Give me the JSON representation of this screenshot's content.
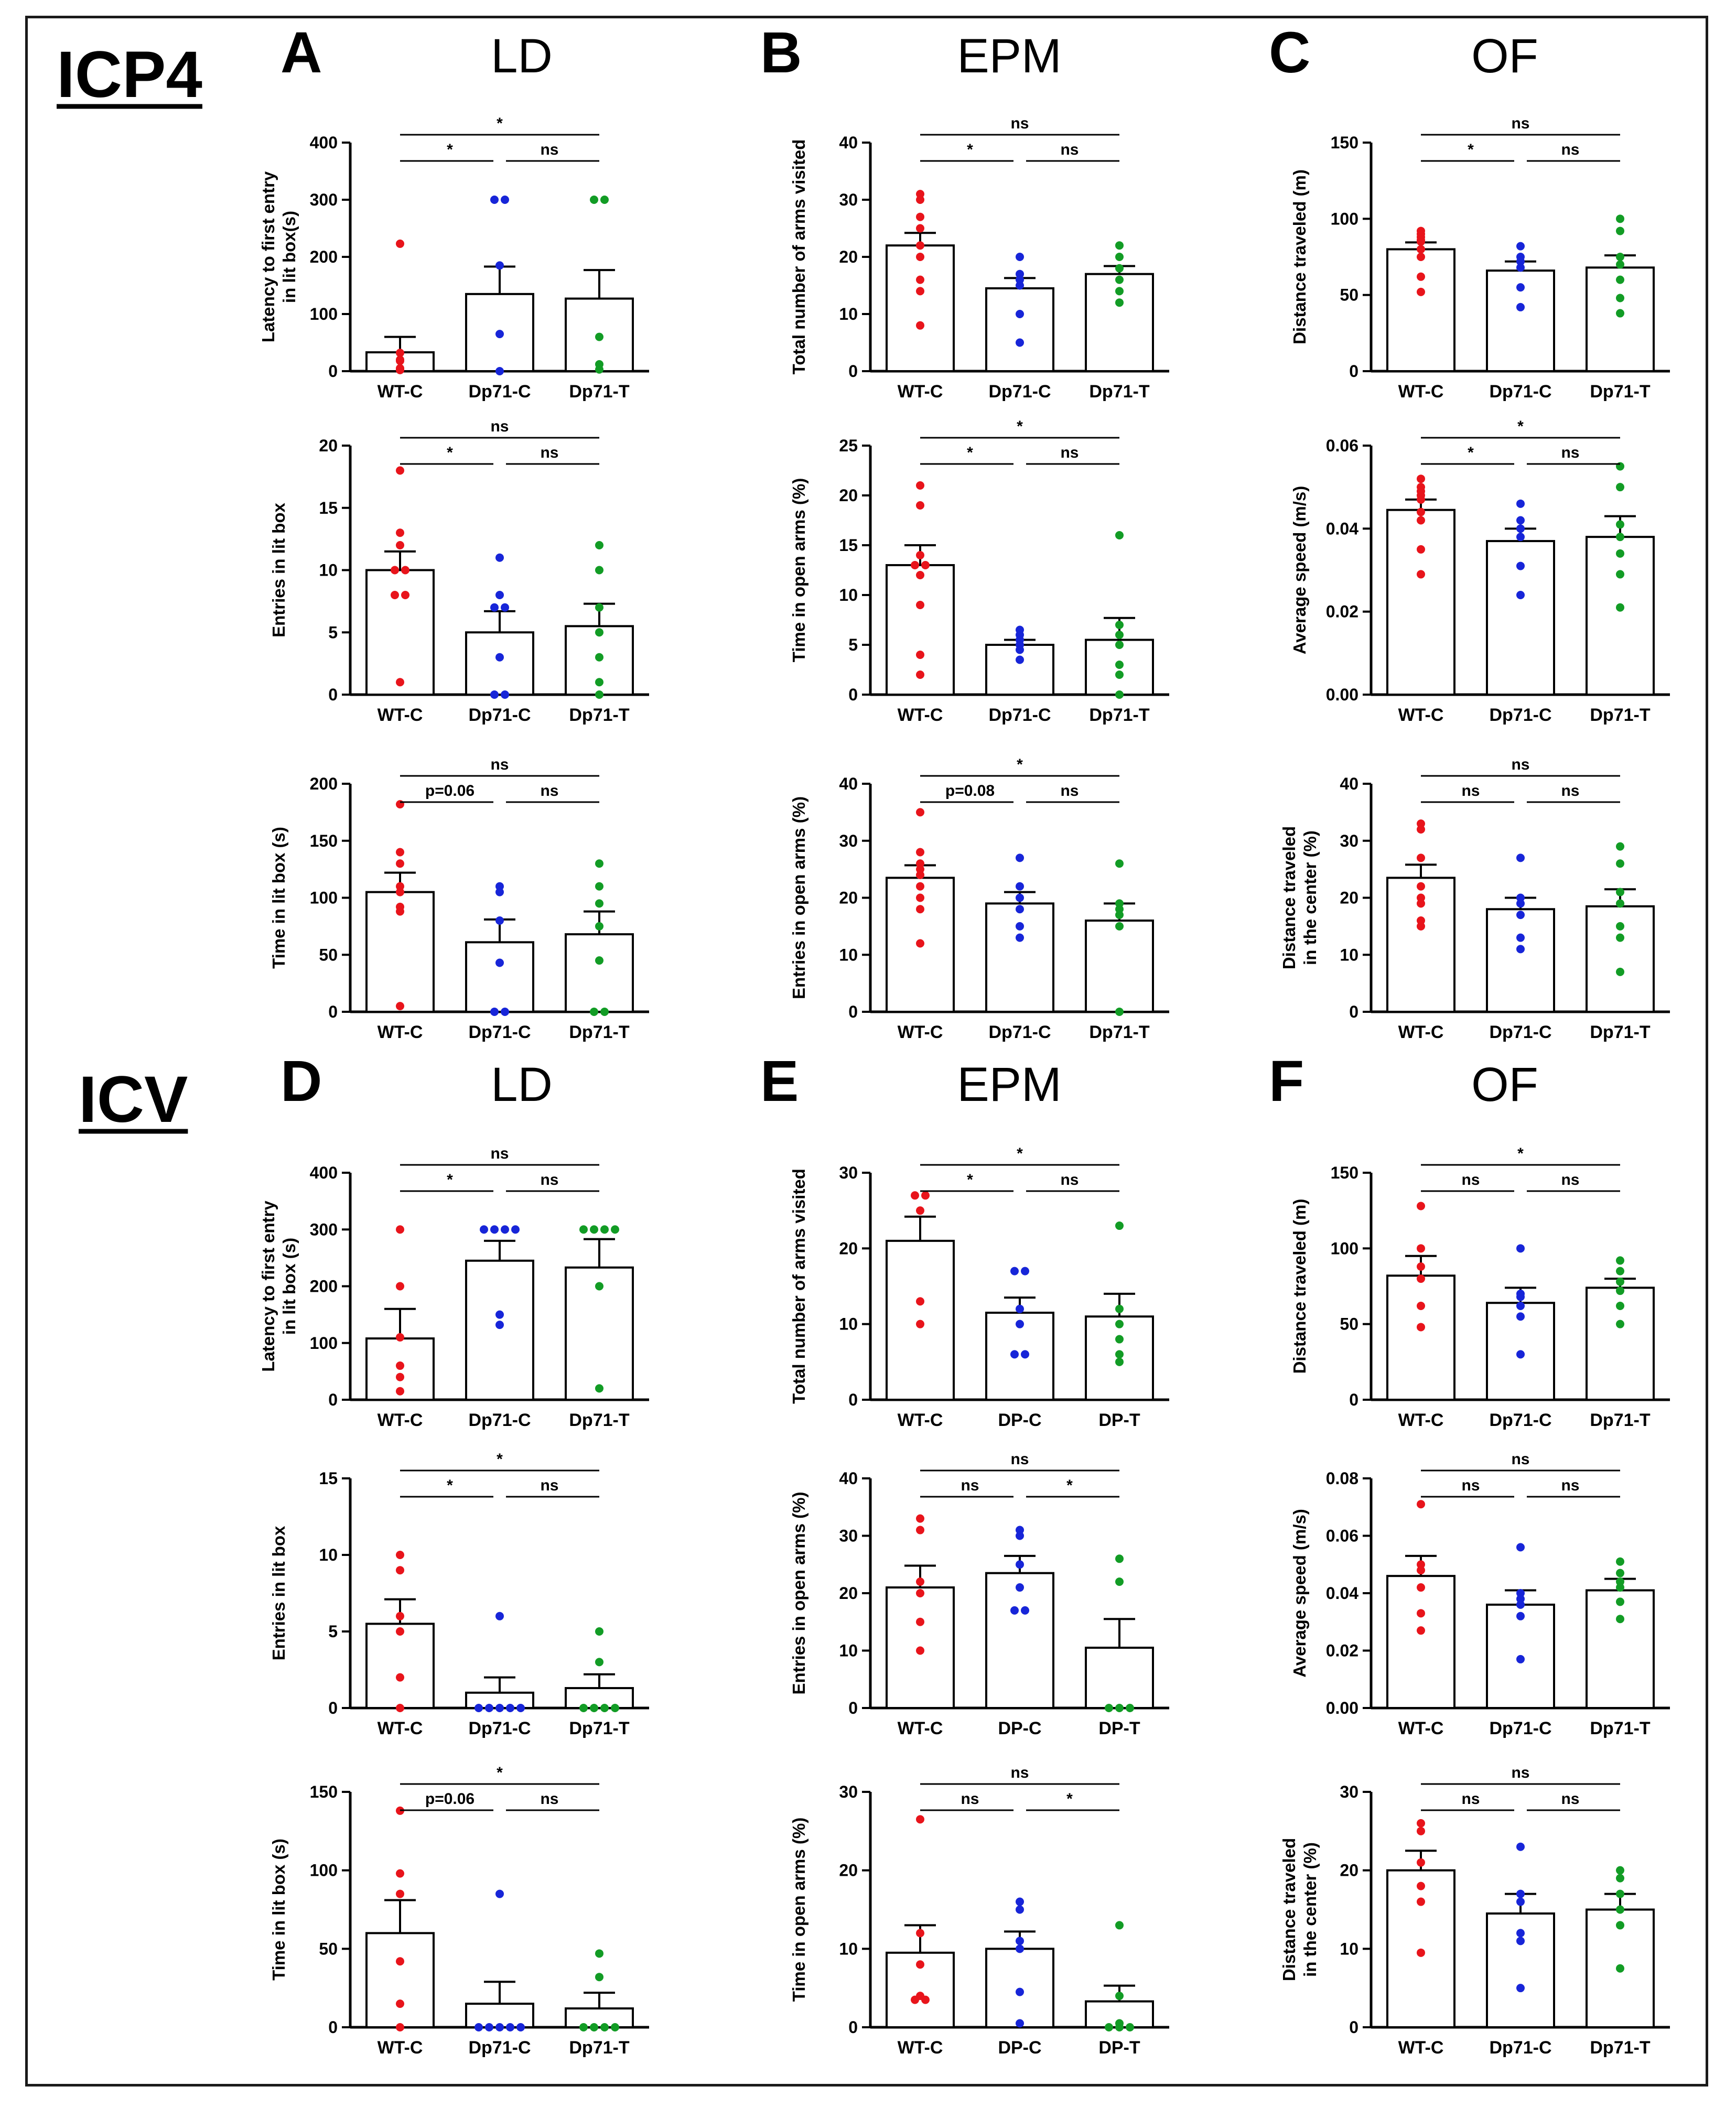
{
  "section_labels": [
    "ICP4",
    "ICV"
  ],
  "colors": {
    "red": "#e8141b",
    "blue": "#1725d8",
    "green": "#129c25",
    "axis": "#000000"
  },
  "chart_data": [
    {
      "panel": "A",
      "test": "LD",
      "group": "ICP4",
      "type": "bar",
      "title": "",
      "ylabel": "Latency to first entry\nin lit box(s)",
      "ylim": [
        0,
        400
      ],
      "yticks": [
        "0",
        "100",
        "200",
        "300",
        "400"
      ],
      "categories": [
        "WT-C",
        "Dp71-C",
        "Dp71-T"
      ],
      "means": [
        33,
        135,
        127
      ],
      "sems": [
        27,
        48,
        50
      ],
      "points": [
        [
          223,
          32,
          20,
          18,
          5,
          3,
          2
        ],
        [
          300,
          300,
          185,
          65,
          0
        ],
        [
          300,
          300,
          60,
          12,
          3
        ]
      ],
      "sig": {
        "top": "*",
        "left": "*",
        "right": "ns"
      }
    },
    {
      "panel": "",
      "test": "LD",
      "group": "ICP4",
      "type": "bar",
      "ylabel": "Entries in lit box",
      "ylim": [
        0,
        20
      ],
      "yticks": [
        "0",
        "5",
        "10",
        "15",
        "20"
      ],
      "categories": [
        "WT-C",
        "Dp71-C",
        "Dp71-T"
      ],
      "means": [
        10,
        5,
        5.5
      ],
      "sems": [
        1.5,
        1.7,
        1.8
      ],
      "points": [
        [
          18,
          13,
          12,
          10,
          10,
          8,
          8,
          1
        ],
        [
          11,
          8,
          7,
          7,
          3,
          0,
          0
        ],
        [
          12,
          10,
          7,
          5,
          3,
          1,
          0
        ]
      ],
      "sig": {
        "top": "ns",
        "left": "*",
        "right": "ns"
      }
    },
    {
      "panel": "",
      "test": "LD",
      "group": "ICP4",
      "type": "bar",
      "ylabel": "Time in lit box (s)",
      "ylim": [
        0,
        200
      ],
      "yticks": [
        "0",
        "50",
        "100",
        "150",
        "200"
      ],
      "categories": [
        "WT-C",
        "Dp71-C",
        "Dp71-T"
      ],
      "means": [
        105,
        61,
        68
      ],
      "sems": [
        17,
        20,
        20
      ],
      "points": [
        [
          182,
          140,
          130,
          110,
          105,
          92,
          88,
          5
        ],
        [
          110,
          105,
          80,
          43,
          0,
          0
        ],
        [
          130,
          110,
          95,
          75,
          45,
          0,
          0
        ]
      ],
      "sig": {
        "top": "ns",
        "left": "p=0.06",
        "right": "ns"
      }
    },
    {
      "panel": "B",
      "test": "EPM",
      "group": "ICP4",
      "type": "bar",
      "ylabel": "Total number of arms visited",
      "ylim": [
        0,
        40
      ],
      "yticks": [
        "0",
        "10",
        "20",
        "30",
        "40"
      ],
      "categories": [
        "WT-C",
        "Dp71-C",
        "Dp71-T"
      ],
      "means": [
        22,
        14.5,
        17
      ],
      "sems": [
        2.2,
        1.8,
        1.4
      ],
      "points": [
        [
          31,
          30,
          27,
          25,
          22,
          20,
          16,
          14,
          8
        ],
        [
          20,
          17,
          16,
          15,
          10,
          5
        ],
        [
          22,
          20,
          18,
          16,
          14,
          12
        ]
      ],
      "sig": {
        "top": "ns",
        "left": "*",
        "right": "ns"
      }
    },
    {
      "panel": "",
      "test": "EPM",
      "group": "ICP4",
      "type": "bar",
      "ylabel": "Time in open arms (%)",
      "ylim": [
        0,
        25
      ],
      "yticks": [
        "0",
        "5",
        "10",
        "15",
        "20",
        "25"
      ],
      "categories": [
        "WT-C",
        "Dp71-C",
        "Dp71-T"
      ],
      "means": [
        13,
        5,
        5.5
      ],
      "sems": [
        2,
        0.5,
        2.2
      ],
      "points": [
        [
          21,
          19,
          14,
          13,
          13,
          12,
          9,
          4,
          2
        ],
        [
          6.5,
          6,
          5.5,
          5,
          4.5,
          3.5
        ],
        [
          16,
          7,
          6,
          5,
          3,
          2,
          0
        ]
      ],
      "sig": {
        "top": "*",
        "left": "*",
        "right": "ns"
      }
    },
    {
      "panel": "",
      "test": "EPM",
      "group": "ICP4",
      "type": "bar",
      "ylabel": "Entries in open arms (%)",
      "ylim": [
        0,
        40
      ],
      "yticks": [
        "0",
        "10",
        "20",
        "30",
        "40"
      ],
      "categories": [
        "WT-C",
        "Dp71-C",
        "Dp71-T"
      ],
      "means": [
        23.5,
        19,
        16
      ],
      "sems": [
        2.2,
        2,
        3
      ],
      "points": [
        [
          35,
          28,
          26,
          25,
          24,
          22,
          20,
          18,
          12
        ],
        [
          27,
          22,
          20,
          18,
          15,
          13
        ],
        [
          26,
          19,
          18,
          17,
          15,
          0
        ]
      ],
      "sig": {
        "top": "*",
        "left": "p=0.08",
        "right": "ns"
      }
    },
    {
      "panel": "C",
      "test": "OF",
      "group": "ICP4",
      "type": "bar",
      "ylabel": "Distance traveled (m)",
      "ylim": [
        0,
        150
      ],
      "yticks": [
        "0",
        "50",
        "100",
        "150"
      ],
      "categories": [
        "WT-C",
        "Dp71-C",
        "Dp71-T"
      ],
      "means": [
        80,
        66,
        68
      ],
      "sems": [
        4.5,
        6,
        8
      ],
      "points": [
        [
          92,
          90,
          88,
          86,
          85,
          80,
          75,
          62,
          52
        ],
        [
          82,
          75,
          72,
          68,
          55,
          42
        ],
        [
          100,
          92,
          75,
          70,
          60,
          48,
          38
        ]
      ],
      "sig": {
        "top": "ns",
        "left": "*",
        "right": "ns"
      }
    },
    {
      "panel": "",
      "test": "OF",
      "group": "ICP4",
      "type": "bar",
      "ylabel": "Average speed (m/s)",
      "ylim": [
        0,
        0.06
      ],
      "yticks": [
        "0.00",
        "0.02",
        "0.04",
        "0.06"
      ],
      "categories": [
        "WT-C",
        "Dp71-C",
        "Dp71-T"
      ],
      "means": [
        0.0445,
        0.037,
        0.038
      ],
      "sems": [
        0.0025,
        0.003,
        0.005
      ],
      "points": [
        [
          0.052,
          0.05,
          0.049,
          0.048,
          0.047,
          0.044,
          0.042,
          0.035,
          0.029
        ],
        [
          0.046,
          0.042,
          0.04,
          0.038,
          0.031,
          0.024
        ],
        [
          0.055,
          0.05,
          0.041,
          0.038,
          0.034,
          0.029,
          0.021
        ]
      ],
      "sig": {
        "top": "*",
        "left": "*",
        "right": "ns"
      }
    },
    {
      "panel": "",
      "test": "OF",
      "group": "ICP4",
      "type": "bar",
      "ylabel": "Distance traveled\nin the center (%)",
      "ylim": [
        0,
        40
      ],
      "yticks": [
        "0",
        "10",
        "20",
        "30",
        "40"
      ],
      "categories": [
        "WT-C",
        "Dp71-C",
        "Dp71-T"
      ],
      "means": [
        23.5,
        18,
        18.5
      ],
      "sems": [
        2.3,
        2,
        3
      ],
      "points": [
        [
          33,
          32,
          27,
          22,
          20,
          19,
          16,
          15
        ],
        [
          27,
          20,
          19,
          17,
          13,
          11
        ],
        [
          29,
          26,
          21,
          19,
          15,
          13,
          7
        ]
      ],
      "sig": {
        "top": "ns",
        "left": "ns",
        "right": "ns"
      }
    },
    {
      "panel": "D",
      "test": "LD",
      "group": "ICV",
      "type": "bar",
      "ylabel": "Latency to first entry\nin lit box (s)",
      "ylim": [
        0,
        400
      ],
      "yticks": [
        "0",
        "100",
        "200",
        "300",
        "400"
      ],
      "categories": [
        "WT-C",
        "Dp71-C",
        "Dp71-T"
      ],
      "means": [
        108,
        245,
        233
      ],
      "sems": [
        52,
        35,
        50
      ],
      "points": [
        [
          300,
          200,
          110,
          60,
          40,
          15
        ],
        [
          300,
          300,
          300,
          300,
          150,
          132
        ],
        [
          300,
          300,
          300,
          300,
          200,
          20
        ]
      ],
      "sig": {
        "top": "ns",
        "left": "*",
        "right": "ns"
      }
    },
    {
      "panel": "",
      "test": "LD",
      "group": "ICV",
      "type": "bar",
      "ylabel": "Entries in lit box",
      "ylim": [
        0,
        15
      ],
      "yticks": [
        "0",
        "5",
        "10",
        "15"
      ],
      "categories": [
        "WT-C",
        "Dp71-C",
        "Dp71-T"
      ],
      "means": [
        5.5,
        1,
        1.3
      ],
      "sems": [
        1.6,
        1,
        0.9
      ],
      "points": [
        [
          10,
          9,
          6,
          5,
          2,
          0
        ],
        [
          6,
          0,
          0,
          0,
          0,
          0
        ],
        [
          5,
          3,
          0,
          0,
          0,
          0
        ]
      ],
      "sig": {
        "top": "*",
        "left": "*",
        "right": "ns"
      }
    },
    {
      "panel": "",
      "test": "LD",
      "group": "ICV",
      "type": "bar",
      "ylabel": "Time in lit box (s)",
      "ylim": [
        0,
        150
      ],
      "yticks": [
        "0",
        "50",
        "100",
        "150"
      ],
      "categories": [
        "WT-C",
        "Dp71-C",
        "Dp71-T"
      ],
      "means": [
        60,
        15,
        12
      ],
      "sems": [
        21,
        14,
        10
      ],
      "points": [
        [
          138,
          98,
          85,
          42,
          15,
          0
        ],
        [
          85,
          0,
          0,
          0,
          0,
          0
        ],
        [
          47,
          32,
          0,
          0,
          0,
          0
        ]
      ],
      "sig": {
        "top": "*",
        "left": "p=0.06",
        "right": "ns"
      }
    },
    {
      "panel": "E",
      "test": "EPM",
      "group": "ICV",
      "type": "bar",
      "ylabel": "Total number of arms visited",
      "ylim": [
        0,
        30
      ],
      "yticks": [
        "0",
        "10",
        "20",
        "30"
      ],
      "categories": [
        "WT-C",
        "DP-C",
        "DP-T"
      ],
      "means": [
        21,
        11.5,
        11
      ],
      "sems": [
        3.2,
        2,
        3
      ],
      "points": [
        [
          27,
          27,
          25,
          13,
          10
        ],
        [
          17,
          17,
          12,
          10,
          6,
          6
        ],
        [
          23,
          12,
          10,
          8,
          6,
          5
        ]
      ],
      "sig": {
        "top": "*",
        "left": "*",
        "right": "ns"
      }
    },
    {
      "panel": "",
      "test": "EPM",
      "group": "ICV",
      "type": "bar",
      "ylabel": "Entries in open arms (%)",
      "ylim": [
        0,
        40
      ],
      "yticks": [
        "0",
        "10",
        "20",
        "30",
        "40"
      ],
      "categories": [
        "WT-C",
        "DP-C",
        "DP-T"
      ],
      "means": [
        21,
        23.5,
        10.5
      ],
      "sems": [
        3.8,
        3,
        5
      ],
      "points": [
        [
          33,
          31,
          22,
          20,
          15,
          10
        ],
        [
          31,
          30,
          25,
          21,
          17,
          17
        ],
        [
          26,
          22,
          0,
          0,
          0
        ]
      ],
      "sig": {
        "top": "ns",
        "left": "ns",
        "right": "*"
      }
    },
    {
      "panel": "",
      "test": "EPM",
      "group": "ICV",
      "type": "bar",
      "ylabel": "Time in open arms (%)",
      "ylim": [
        0,
        30
      ],
      "yticks": [
        "0",
        "10",
        "20",
        "30"
      ],
      "categories": [
        "WT-C",
        "DP-C",
        "DP-T"
      ],
      "means": [
        9.5,
        10,
        3.3
      ],
      "sems": [
        3.5,
        2.2,
        2
      ],
      "points": [
        [
          26.5,
          12,
          8,
          4,
          3.5,
          3.5
        ],
        [
          16,
          15,
          11,
          10,
          4.5,
          0.5
        ],
        [
          13,
          4,
          0.5,
          0,
          0,
          0
        ]
      ],
      "sig": {
        "top": "ns",
        "left": "ns",
        "right": "*"
      }
    },
    {
      "panel": "F",
      "test": "OF",
      "group": "ICV",
      "type": "bar",
      "ylabel": "Distance traveled (m)",
      "ylim": [
        0,
        150
      ],
      "yticks": [
        "0",
        "50",
        "100",
        "150"
      ],
      "categories": [
        "WT-C",
        "Dp71-C",
        "Dp71-T"
      ],
      "means": [
        82,
        64,
        74
      ],
      "sems": [
        13,
        10,
        6
      ],
      "points": [
        [
          128,
          100,
          88,
          80,
          62,
          48
        ],
        [
          100,
          70,
          68,
          62,
          55,
          30
        ],
        [
          92,
          85,
          78,
          72,
          62,
          50
        ]
      ],
      "sig": {
        "top": "*",
        "left": "ns",
        "right": "ns"
      }
    },
    {
      "panel": "",
      "test": "OF",
      "group": "ICV",
      "type": "bar",
      "ylabel": "Average speed (m/s)",
      "ylim": [
        0,
        0.08
      ],
      "yticks": [
        "0.00",
        "0.02",
        "0.04",
        "0.06",
        "0.08"
      ],
      "categories": [
        "WT-C",
        "Dp71-C",
        "Dp71-T"
      ],
      "means": [
        0.046,
        0.036,
        0.041
      ],
      "sems": [
        0.007,
        0.005,
        0.004
      ],
      "points": [
        [
          0.071,
          0.05,
          0.048,
          0.042,
          0.033,
          0.027
        ],
        [
          0.056,
          0.04,
          0.038,
          0.036,
          0.032,
          0.017
        ],
        [
          0.051,
          0.047,
          0.044,
          0.042,
          0.037,
          0.031
        ]
      ],
      "sig": {
        "top": "ns",
        "left": "ns",
        "right": "ns"
      }
    },
    {
      "panel": "",
      "test": "OF",
      "group": "ICV",
      "type": "bar",
      "ylabel": "Distance traveled\nin the center (%)",
      "ylim": [
        0,
        30
      ],
      "yticks": [
        "0",
        "10",
        "20",
        "30"
      ],
      "categories": [
        "WT-C",
        "Dp71-C",
        "Dp71-T"
      ],
      "means": [
        20,
        14.5,
        15
      ],
      "sems": [
        2.5,
        2.5,
        2
      ],
      "points": [
        [
          26,
          25,
          21,
          18,
          16,
          9.5
        ],
        [
          23,
          17,
          16,
          12,
          11,
          5
        ],
        [
          20,
          19,
          17,
          15,
          13,
          7.5
        ]
      ],
      "sig": {
        "top": "ns",
        "left": "ns",
        "right": "ns"
      }
    }
  ]
}
